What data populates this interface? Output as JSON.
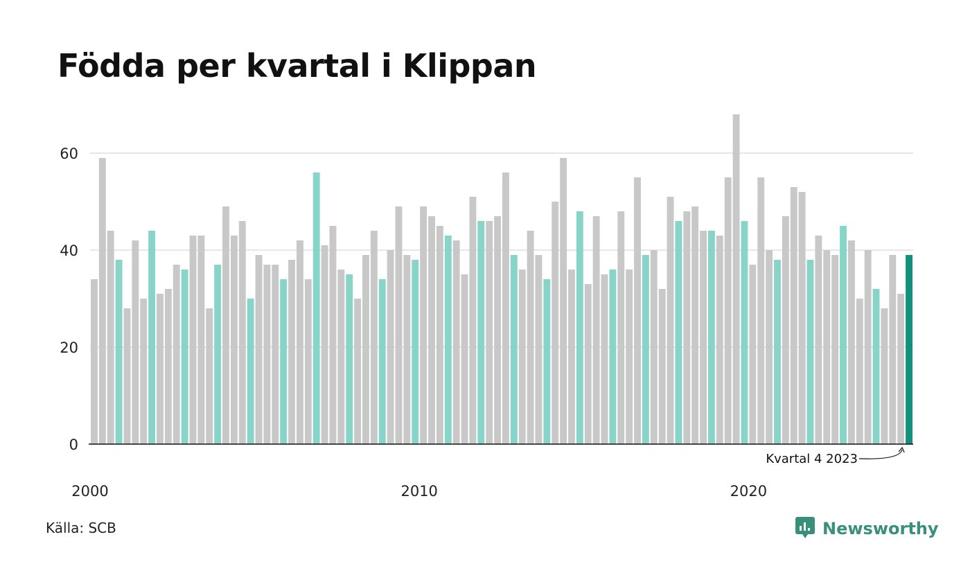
{
  "title": "Födda per kvartal i Klippan",
  "source": "Källa: SCB",
  "brand": {
    "name": "Newsworthy",
    "icon": "newsworthy-logo-icon"
  },
  "colors": {
    "bar": "#c8c8c8",
    "q4": "#88d4c8",
    "latest": "#12907f",
    "grid": "#e6e6e6",
    "axis": "#111111",
    "brand": "#3a8f7c"
  },
  "chart_data": {
    "type": "bar",
    "title": "Födda per kvartal i Klippan",
    "xlabel": "",
    "ylabel": "",
    "start_year": 2000,
    "quarters_per_year": 4,
    "highlight_quarter": 4,
    "values": [
      34,
      59,
      44,
      38,
      28,
      42,
      30,
      44,
      31,
      32,
      37,
      36,
      43,
      43,
      28,
      37,
      49,
      43,
      46,
      30,
      39,
      37,
      37,
      34,
      38,
      42,
      34,
      56,
      41,
      45,
      36,
      35,
      30,
      39,
      44,
      34,
      40,
      49,
      39,
      38,
      49,
      47,
      45,
      43,
      42,
      35,
      51,
      46,
      46,
      47,
      56,
      39,
      36,
      44,
      39,
      34,
      50,
      59,
      36,
      48,
      33,
      47,
      35,
      36,
      48,
      36,
      55,
      39,
      40,
      32,
      51,
      46,
      48,
      49,
      44,
      44,
      43,
      55,
      68,
      46,
      37,
      55,
      40,
      38,
      47,
      53,
      52,
      38,
      43,
      40,
      39,
      45,
      42,
      30,
      40,
      32,
      28,
      39,
      31,
      39
    ],
    "ylim": [
      0,
      70
    ],
    "yticks": [
      0,
      20,
      40,
      60
    ],
    "xticks": [
      {
        "label": "2000",
        "year": 2000
      },
      {
        "label": "2010",
        "year": 2010
      },
      {
        "label": "2020",
        "year": 2020
      }
    ],
    "grid": true,
    "annotation": {
      "text": "Kvartal 4 2023"
    }
  }
}
